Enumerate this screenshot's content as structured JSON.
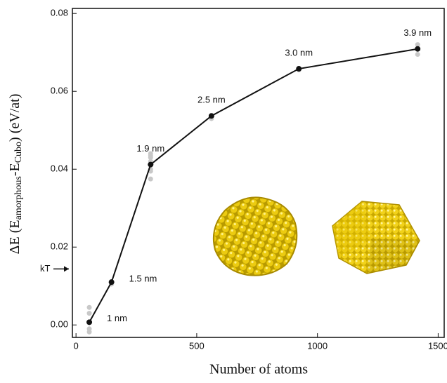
{
  "chart_data": {
    "type": "line",
    "x_label": "Number of atoms",
    "y_label": {
      "prefix": "ΔE (E",
      "sub1": "amorphous",
      "mid": "-E",
      "sub2": "Cubo",
      "suffix": ") (eV/at)"
    },
    "xlim": [
      -15,
      1525
    ],
    "xticks": [
      0,
      500,
      1000,
      1500
    ],
    "ylim": [
      -0.0032,
      0.0813
    ],
    "yticks": [
      {
        "value": 0,
        "label": "0.00"
      },
      {
        "value": 0.02,
        "label": "0.02"
      },
      {
        "value": 0.04,
        "label": "0.04"
      },
      {
        "value": 0.06,
        "label": "0.06"
      },
      {
        "value": 0.08,
        "label": "0.08"
      }
    ],
    "kT": {
      "label": "kT",
      "value": 0.0144
    },
    "series": [
      {
        "color": "#111111",
        "x": [
          55,
          147,
          309,
          561,
          923,
          1415
        ],
        "values": [
          0.0007,
          0.011,
          0.0412,
          0.0537,
          0.0658,
          0.0709
        ],
        "point_labels": [
          "1 nm",
          "1.5 nm",
          "1.9 nm",
          "2.5 nm",
          "3.0 nm",
          "3.9 nm"
        ]
      },
      {
        "type": "scatter",
        "color": "#c8c8c8",
        "x": [
          55,
          55,
          55,
          55,
          147,
          309,
          309,
          309,
          309,
          309,
          309,
          309,
          561,
          923,
          1415,
          1415
        ],
        "values": [
          0.0045,
          0.003,
          -0.001,
          -0.0018,
          0.0105,
          0.044,
          0.0435,
          0.043,
          0.042,
          0.04,
          0.0395,
          0.0375,
          0.053,
          0.0655,
          0.072,
          0.0695
        ]
      }
    ]
  }
}
